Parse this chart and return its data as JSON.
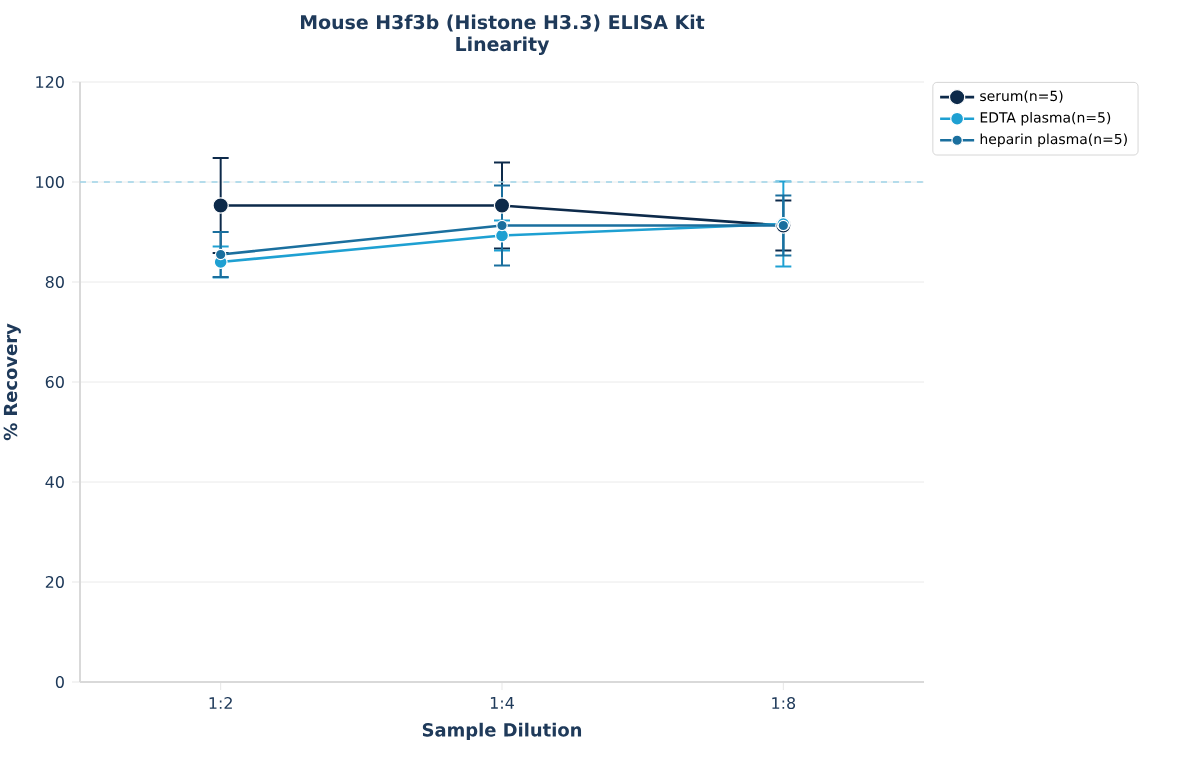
{
  "chart_data": {
    "type": "line",
    "title": "Mouse H3f3b (Histone H3.3) ELISA Kit",
    "subtitle": "Linearity",
    "xlabel": "Sample Dilution",
    "ylabel": "% Recovery",
    "categories": [
      "1:2",
      "1:4",
      "1:8"
    ],
    "series": [
      {
        "name": "serum(n=5)",
        "color": "#0d2a4a",
        "values": [
          95.3,
          95.3,
          91.3
        ],
        "errors": [
          9.5,
          8.6,
          5
        ]
      },
      {
        "name": "EDTA plasma(n=5)",
        "color": "#1ea0d2",
        "values": [
          84,
          89.3,
          91.6
        ],
        "errors": [
          3.1,
          3,
          8.5
        ]
      },
      {
        "name": "heparin plasma(n=5)",
        "color": "#1a6f9e",
        "values": [
          85.5,
          91.3,
          91.3
        ],
        "errors": [
          4.5,
          8,
          6
        ]
      }
    ],
    "ylim": [
      0,
      120
    ],
    "yticks": [
      0,
      20,
      40,
      60,
      80,
      100,
      120
    ],
    "ref_lines": [
      {
        "axis": "y",
        "value": 100,
        "color": "#9fd3e8",
        "line_style": "dashed"
      }
    ],
    "grid": "y",
    "legend": "top right",
    "marker": "circle",
    "line_style": "solid"
  }
}
